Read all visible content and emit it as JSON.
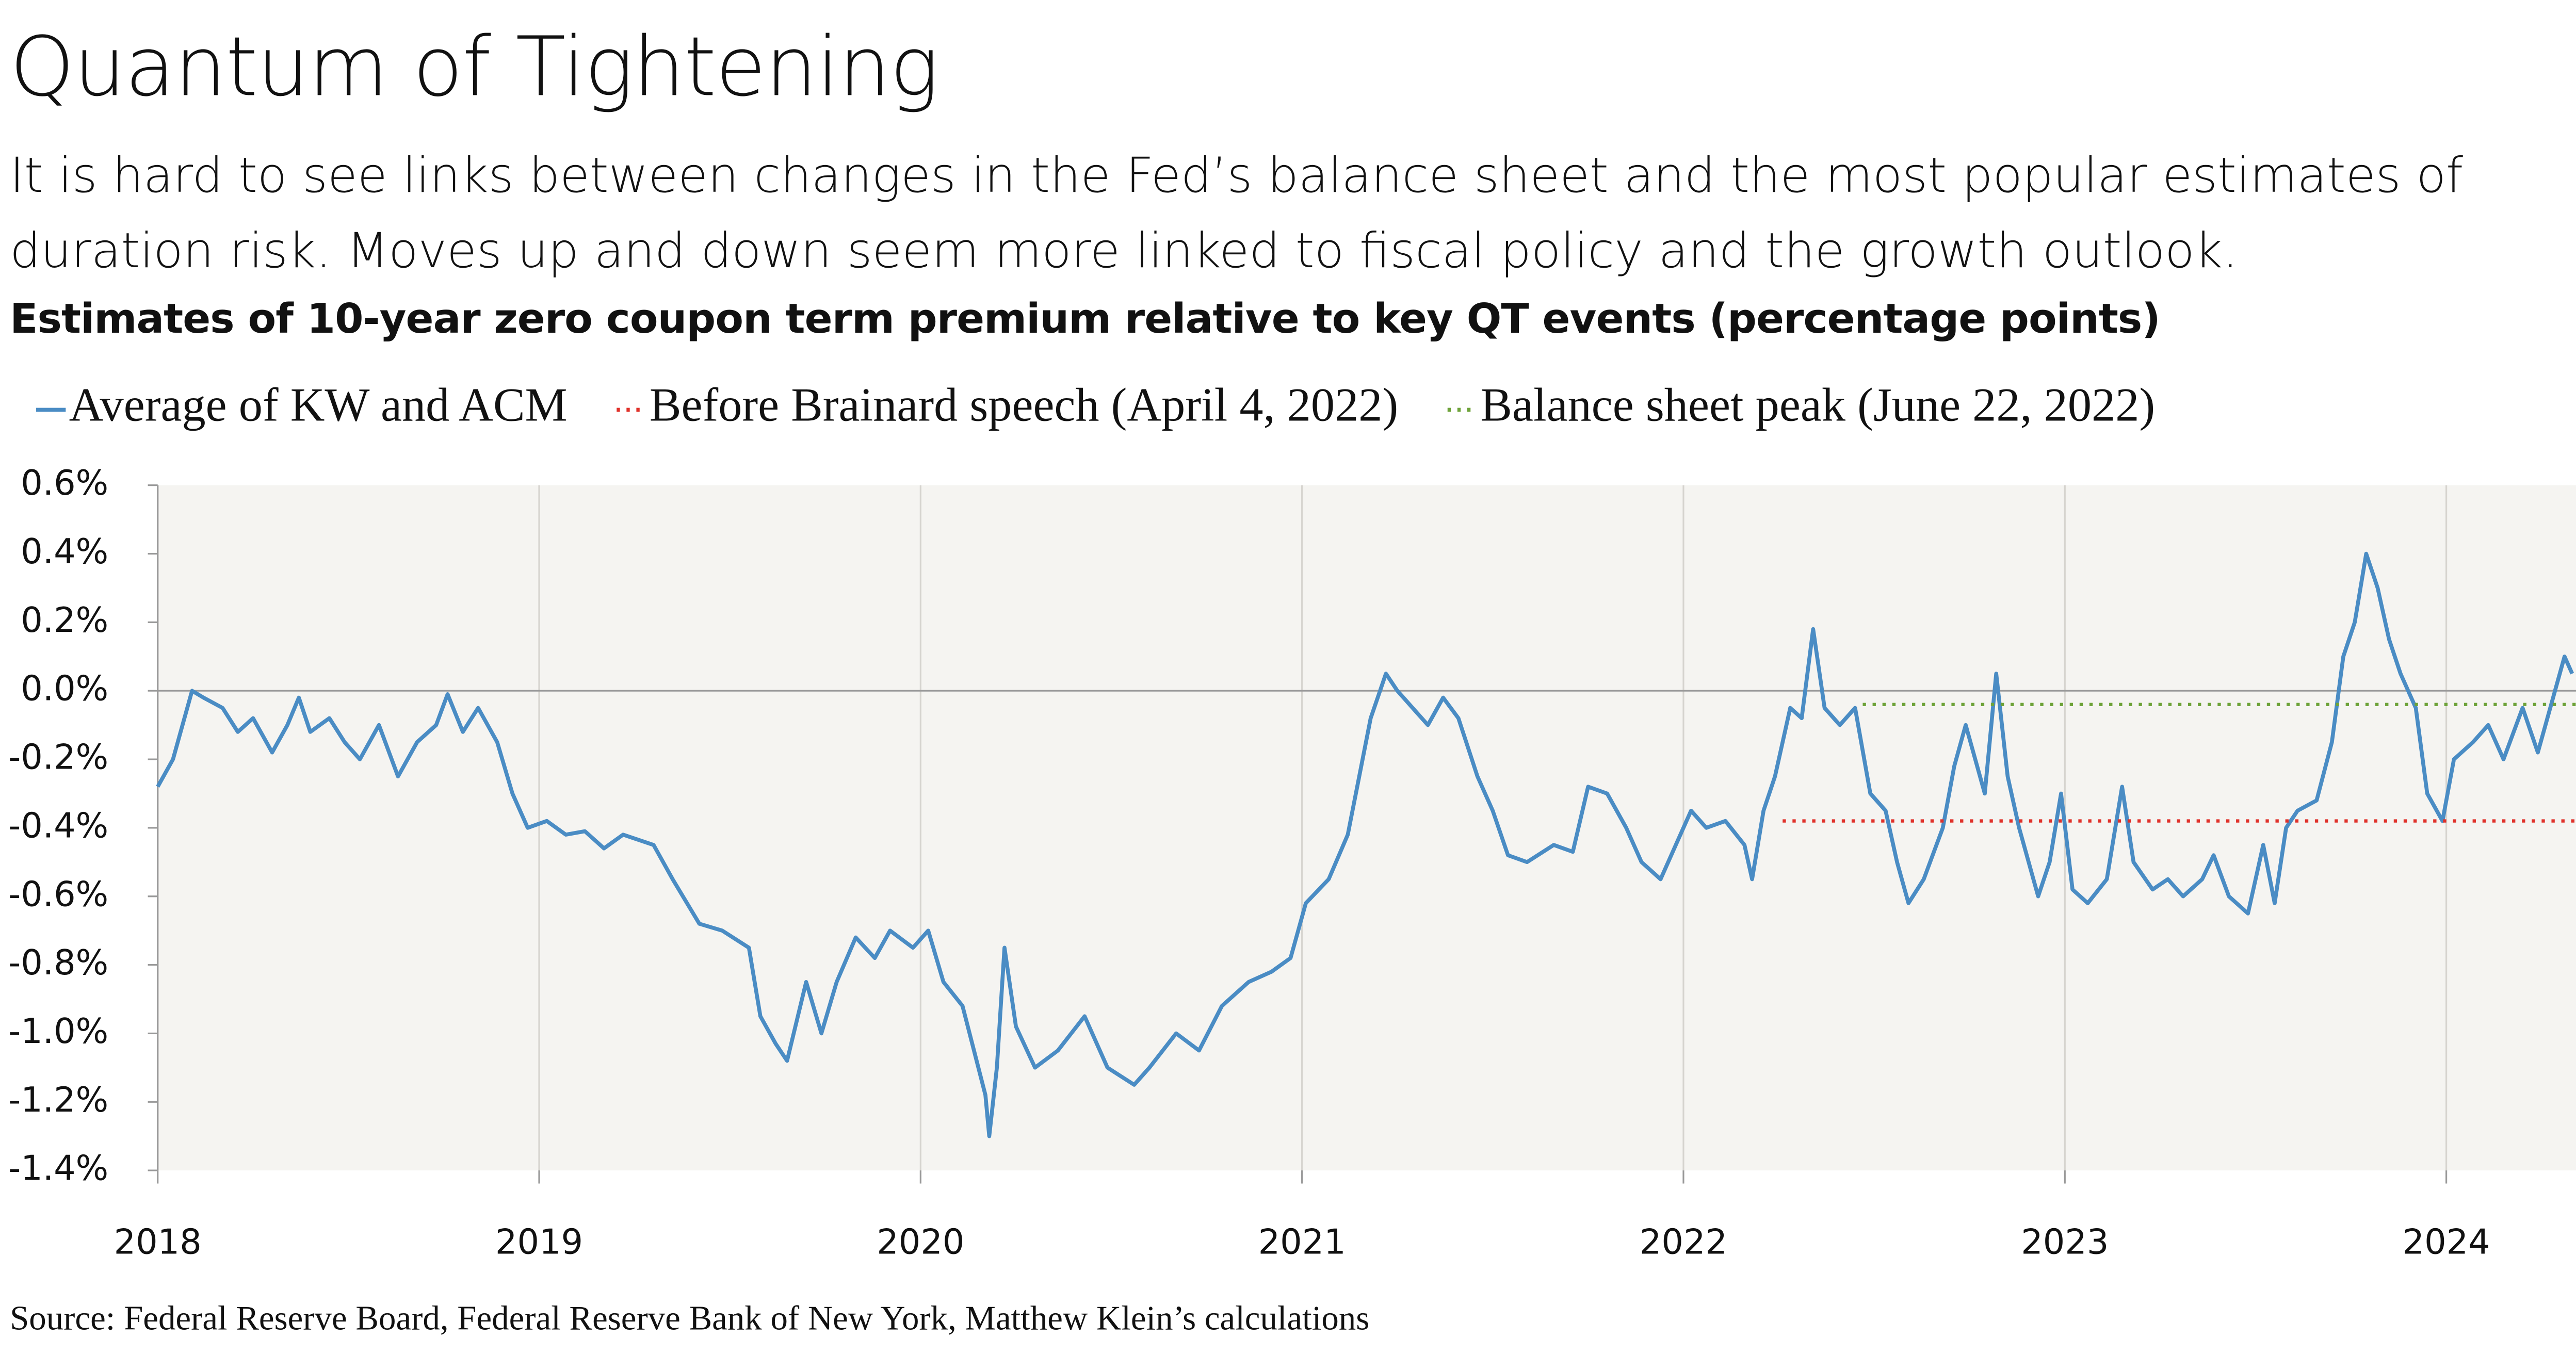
{
  "chart_data": {
    "type": "line",
    "title": "Quantum of Tightening",
    "subtitle": "It is hard to see links between changes in the Fed’s balance sheet and the most popular estimates of duration risk. Moves up and down seem more linked to fiscal policy and the growth outlook.",
    "chart_title": "Estimates of 10-year zero coupon term premium relative to key QT events (percentage points)",
    "source": "Source: Federal Reserve Board, Federal Reserve Bank of New York, Matthew Klein’s calculations",
    "xlim": [
      2018,
      2024.34
    ],
    "xticks": [
      2018,
      2019,
      2020,
      2021,
      2022,
      2023,
      2024
    ],
    "ylim": [
      -1.4,
      0.6
    ],
    "yticks": [
      {
        "value": 0.6,
        "label": "0.6%"
      },
      {
        "value": 0.4,
        "label": "0.4%"
      },
      {
        "value": 0.2,
        "label": "0.2%"
      },
      {
        "value": 0,
        "label": "0.0%"
      },
      {
        "value": -0.2,
        "label": "-0.2%"
      },
      {
        "value": -0.4,
        "label": "-0.4%"
      },
      {
        "value": -0.6,
        "label": "-0.6%"
      },
      {
        "value": -0.8,
        "label": "-0.8%"
      },
      {
        "value": -1.0,
        "label": "-1.0%"
      },
      {
        "value": -1.2,
        "label": "-1.2%"
      },
      {
        "value": -1.4,
        "label": "-1.4%"
      }
    ],
    "grid": true,
    "background": "#f5f4f1",
    "legend": "top",
    "series": [
      {
        "name": "Average of KW and ACM",
        "color": "#4a8cc4",
        "style": "solid",
        "x": [
          2018.0,
          2018.04,
          2018.09,
          2018.12,
          2018.17,
          2018.21,
          2018.25,
          2018.3,
          2018.34,
          2018.37,
          2018.4,
          2018.45,
          2018.49,
          2018.53,
          2018.58,
          2018.63,
          2018.68,
          2018.73,
          2018.76,
          2018.8,
          2018.84,
          2018.89,
          2018.93,
          2018.97,
          2019.02,
          2019.07,
          2019.12,
          2019.17,
          2019.22,
          2019.3,
          2019.35,
          2019.42,
          2019.48,
          2019.55,
          2019.58,
          2019.62,
          2019.65,
          2019.7,
          2019.74,
          2019.78,
          2019.83,
          2019.88,
          2019.92,
          2019.98,
          2020.02,
          2020.06,
          2020.11,
          2020.14,
          2020.17,
          2020.18,
          2020.2,
          2020.22,
          2020.25,
          2020.3,
          2020.36,
          2020.43,
          2020.49,
          2020.56,
          2020.6,
          2020.67,
          2020.73,
          2020.79,
          2020.86,
          2020.92,
          2020.97,
          2021.01,
          2021.07,
          2021.12,
          2021.15,
          2021.18,
          2021.22,
          2021.25,
          2021.29,
          2021.33,
          2021.37,
          2021.41,
          2021.46,
          2021.5,
          2021.54,
          2021.59,
          2021.66,
          2021.71,
          2021.75,
          2021.8,
          2021.85,
          2021.89,
          2021.94,
          2021.98,
          2022.02,
          2022.06,
          2022.11,
          2022.16,
          2022.18,
          2022.21,
          2022.24,
          2022.28,
          2022.31,
          2022.34,
          2022.37,
          2022.41,
          2022.45,
          2022.49,
          2022.53,
          2022.56,
          2022.59,
          2022.63,
          2022.68,
          2022.71,
          2022.74,
          2022.79,
          2022.82,
          2022.85,
          2022.88,
          2022.93,
          2022.96,
          2022.99,
          2023.02,
          2023.06,
          2023.11,
          2023.15,
          2023.18,
          2023.23,
          2023.27,
          2023.31,
          2023.36,
          2023.39,
          2023.43,
          2023.48,
          2023.52,
          2023.55,
          2023.58,
          2023.61,
          2023.66,
          2023.7,
          2023.73,
          2023.76,
          2023.79,
          2023.82,
          2023.85,
          2023.88,
          2023.92,
          2023.95,
          2023.99,
          2024.02,
          2024.07,
          2024.11,
          2024.15,
          2024.2,
          2024.24,
          2024.28,
          2024.31,
          2024.33
        ],
        "values": [
          -0.28,
          -0.2,
          0.0,
          -0.02,
          -0.05,
          -0.12,
          -0.08,
          -0.18,
          -0.1,
          -0.02,
          -0.12,
          -0.08,
          -0.15,
          -0.2,
          -0.1,
          -0.25,
          -0.15,
          -0.1,
          -0.01,
          -0.12,
          -0.05,
          -0.15,
          -0.3,
          -0.4,
          -0.38,
          -0.42,
          -0.41,
          -0.46,
          -0.42,
          -0.45,
          -0.55,
          -0.68,
          -0.7,
          -0.75,
          -0.95,
          -1.03,
          -1.08,
          -0.85,
          -1.0,
          -0.85,
          -0.72,
          -0.78,
          -0.7,
          -0.75,
          -0.7,
          -0.85,
          -0.92,
          -1.05,
          -1.18,
          -1.3,
          -1.1,
          -0.75,
          -0.98,
          -1.1,
          -1.05,
          -0.95,
          -1.1,
          -1.15,
          -1.1,
          -1.0,
          -1.05,
          -0.92,
          -0.85,
          -0.82,
          -0.78,
          -0.62,
          -0.55,
          -0.42,
          -0.25,
          -0.08,
          0.05,
          0.0,
          -0.05,
          -0.1,
          -0.02,
          -0.08,
          -0.25,
          -0.35,
          -0.48,
          -0.5,
          -0.45,
          -0.47,
          -0.28,
          -0.3,
          -0.4,
          -0.5,
          -0.55,
          -0.45,
          -0.35,
          -0.4,
          -0.38,
          -0.45,
          -0.55,
          -0.35,
          -0.25,
          -0.05,
          -0.08,
          0.18,
          -0.05,
          -0.1,
          -0.05,
          -0.3,
          -0.35,
          -0.5,
          -0.62,
          -0.55,
          -0.4,
          -0.22,
          -0.1,
          -0.3,
          0.05,
          -0.25,
          -0.4,
          -0.6,
          -0.5,
          -0.3,
          -0.58,
          -0.62,
          -0.55,
          -0.28,
          -0.5,
          -0.58,
          -0.55,
          -0.6,
          -0.55,
          -0.48,
          -0.6,
          -0.65,
          -0.45,
          -0.62,
          -0.4,
          -0.35,
          -0.32,
          -0.15,
          0.1,
          0.2,
          0.4,
          0.3,
          0.15,
          0.05,
          -0.05,
          -0.3,
          -0.38,
          -0.2,
          -0.15,
          -0.1,
          -0.2,
          -0.05,
          -0.18,
          -0.02,
          0.1,
          0.05
        ]
      },
      {
        "name": "Before Brainard speech (April 4, 2022)",
        "color": "#e0312a",
        "style": "dotted",
        "x": [
          2022.26,
          2024.34
        ],
        "values": [
          -0.38,
          -0.38
        ]
      },
      {
        "name": "Balance sheet peak (June 22, 2022)",
        "color": "#6ea33a",
        "style": "dotted",
        "x": [
          2022.47,
          2024.34
        ],
        "values": [
          -0.04,
          -0.04
        ]
      }
    ]
  }
}
